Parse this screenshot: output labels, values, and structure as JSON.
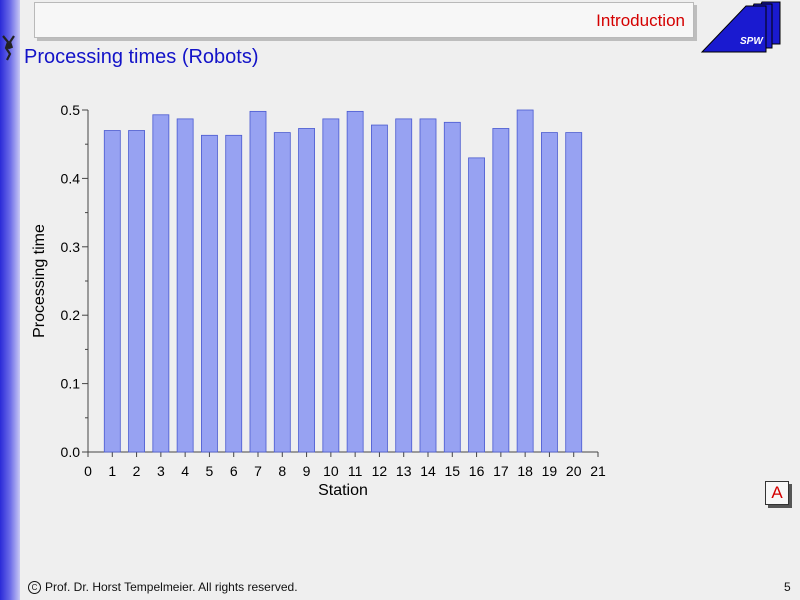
{
  "header": {
    "section": "Introduction",
    "logo_text": "SPW"
  },
  "slide": {
    "title": "Processing times (Robots)"
  },
  "chart_data": {
    "type": "bar",
    "categories": [
      "1",
      "2",
      "3",
      "4",
      "5",
      "6",
      "7",
      "8",
      "9",
      "10",
      "11",
      "12",
      "13",
      "14",
      "15",
      "16",
      "17",
      "18",
      "19",
      "20"
    ],
    "values": [
      0.47,
      0.47,
      0.493,
      0.487,
      0.463,
      0.463,
      0.498,
      0.467,
      0.473,
      0.487,
      0.498,
      0.478,
      0.487,
      0.487,
      0.482,
      0.43,
      0.473,
      0.5,
      0.467,
      0.467
    ],
    "xlabel": "Station",
    "ylabel": "Processing time",
    "x_ticks": [
      "0",
      "1",
      "2",
      "3",
      "4",
      "5",
      "6",
      "7",
      "8",
      "9",
      "10",
      "11",
      "12",
      "13",
      "14",
      "15",
      "16",
      "17",
      "18",
      "19",
      "20",
      "21"
    ],
    "y_ticks": [
      "0.0",
      "0.1",
      "0.2",
      "0.3",
      "0.4",
      "0.5"
    ],
    "xlim": [
      0,
      21
    ],
    "ylim": [
      0,
      0.5
    ],
    "grid": false,
    "bar_color": "#97a2f2",
    "bar_edge_color": "#4a5ad0"
  },
  "controls": {
    "a_button": "A"
  },
  "footer": {
    "copyright_symbol": "C",
    "copyright": "Prof. Dr. Horst Tempelmeier. All rights reserved.",
    "page_number": "5"
  }
}
